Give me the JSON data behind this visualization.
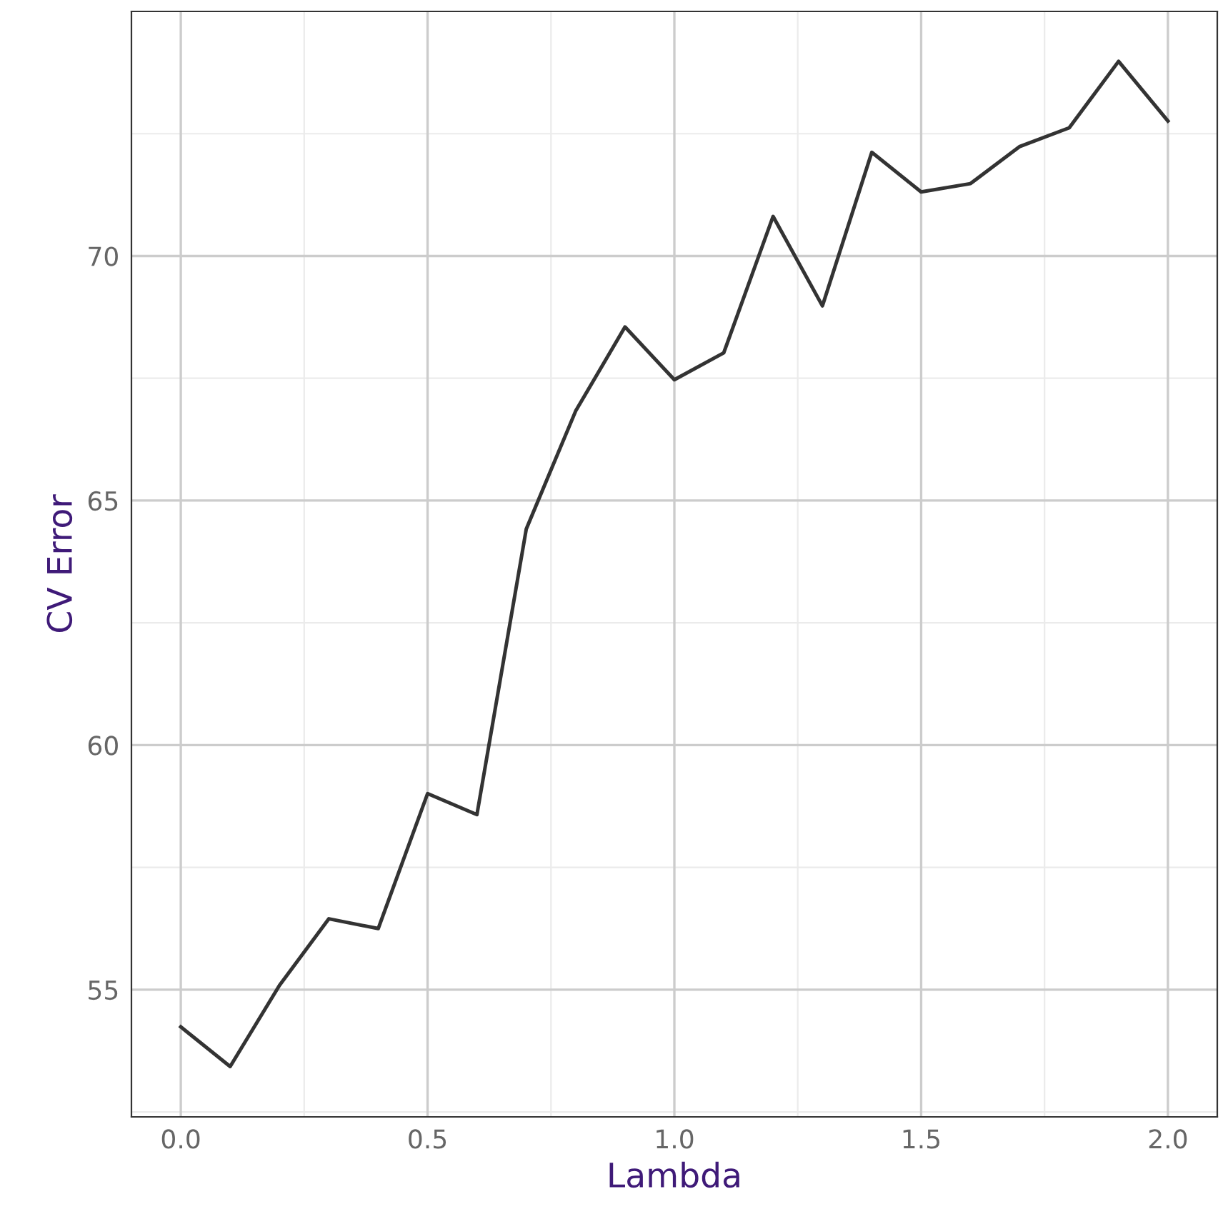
{
  "chart_data": {
    "type": "line",
    "xlabel": "Lambda",
    "ylabel": "CV Error",
    "x": [
      0.0,
      0.1,
      0.2,
      0.3,
      0.4,
      0.5,
      0.6,
      0.7,
      0.8,
      0.9,
      1.0,
      1.1,
      1.2,
      1.3,
      1.4,
      1.5,
      1.6,
      1.7,
      1.8,
      1.9,
      2.0
    ],
    "series": [
      {
        "color": "#333333",
        "values": [
          54.24,
          53.43,
          55.09,
          56.45,
          56.25,
          59.01,
          58.58,
          64.42,
          66.83,
          68.55,
          67.47,
          68.02,
          70.81,
          68.98,
          72.12,
          71.31,
          71.48,
          72.24,
          72.62,
          73.98,
          72.76
        ]
      }
    ],
    "xlim": [
      -0.1,
      2.1
    ],
    "ylim": [
      52.4,
      75.0
    ],
    "xticks": [
      {
        "value": 0.0,
        "label": "0.0"
      },
      {
        "value": 0.5,
        "label": "0.5"
      },
      {
        "value": 1.0,
        "label": "1.0"
      },
      {
        "value": 1.5,
        "label": "1.5"
      },
      {
        "value": 2.0,
        "label": "2.0"
      }
    ],
    "yticks": [
      55,
      60,
      65,
      70
    ],
    "grid": true,
    "marker": "none",
    "line_style": "solid",
    "legend": false
  }
}
